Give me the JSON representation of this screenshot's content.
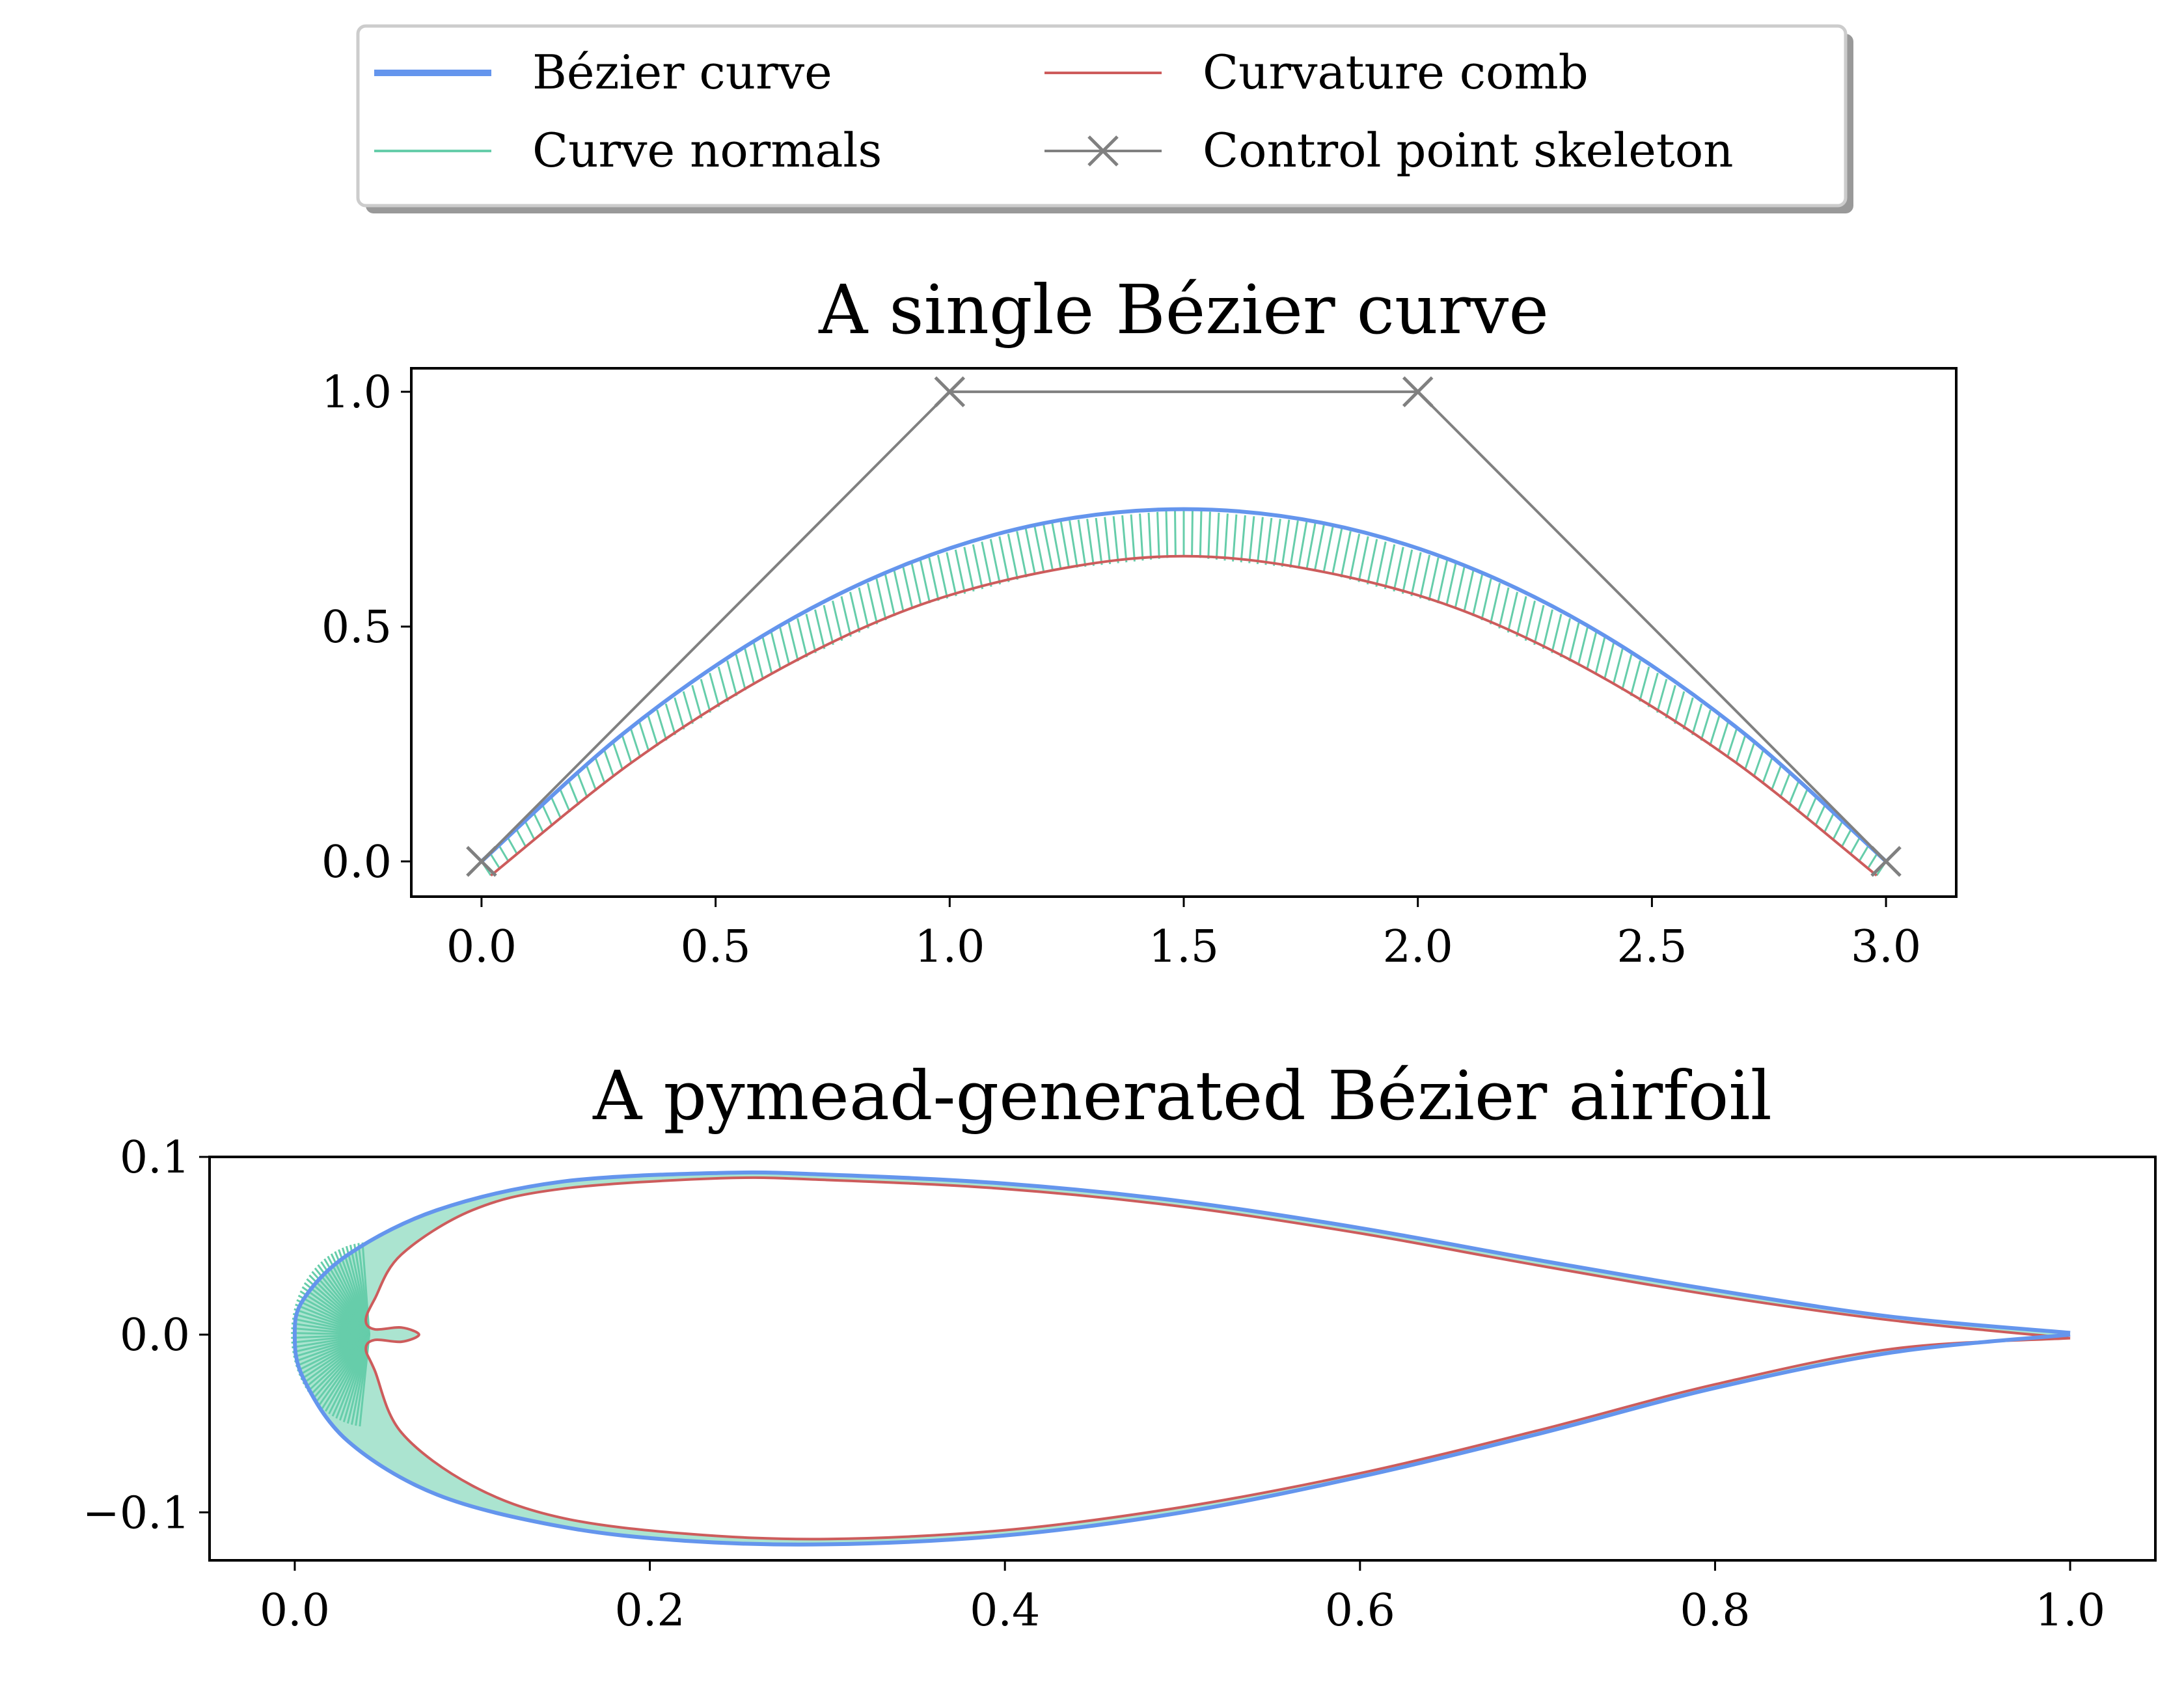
{
  "legend": {
    "placement": "top-center",
    "entries": [
      {
        "label": "Bézier curve",
        "color": "#6495ED",
        "marker": "line-thick"
      },
      {
        "label": "Curvature comb",
        "color": "#CD5C5C",
        "marker": "line"
      },
      {
        "label": "Curve normals",
        "color": "#66CDAA",
        "marker": "line"
      },
      {
        "label": "Control point skeleton",
        "color": "#808080",
        "marker": "line-x"
      }
    ]
  },
  "chart_data": [
    {
      "type": "line",
      "title": "A single Bézier curve",
      "xlabel": "",
      "ylabel": "",
      "xlim": [
        -0.15,
        3.15
      ],
      "ylim": [
        -0.075,
        1.05
      ],
      "xticks": [
        0.0,
        0.5,
        1.0,
        1.5,
        2.0,
        2.5,
        3.0
      ],
      "xtick_labels": [
        "0.0",
        "0.5",
        "1.0",
        "1.5",
        "2.0",
        "2.5",
        "3.0"
      ],
      "yticks": [
        0.0,
        0.5,
        1.0
      ],
      "ytick_labels": [
        "0.0",
        "0.5",
        "1.0"
      ],
      "grid": false,
      "control_points": [
        [
          0,
          0
        ],
        [
          1,
          1
        ],
        [
          2,
          1
        ],
        [
          3,
          0
        ]
      ],
      "series": [
        {
          "name": "Bézier curve",
          "x": [
            0.0,
            0.3,
            0.6,
            0.9,
            1.2,
            1.5,
            1.8,
            2.1,
            2.4,
            2.7,
            3.0
          ],
          "y": [
            0.0,
            0.27,
            0.48,
            0.63,
            0.72,
            0.75,
            0.72,
            0.63,
            0.48,
            0.27,
            0.0
          ]
        },
        {
          "name": "Curvature comb",
          "x": [
            0.02,
            0.32,
            0.62,
            0.92,
            1.22,
            1.5,
            1.78,
            2.08,
            2.38,
            2.68,
            2.98
          ],
          "y": [
            -0.03,
            0.21,
            0.4,
            0.54,
            0.62,
            0.65,
            0.62,
            0.54,
            0.4,
            0.21,
            -0.03
          ]
        }
      ]
    },
    {
      "type": "line",
      "title": "A pymead-generated Bézier airfoil",
      "xlabel": "",
      "ylabel": "",
      "xlim": [
        -0.048,
        1.048
      ],
      "ylim": [
        -0.127,
        0.1
      ],
      "xticks": [
        0.0,
        0.2,
        0.4,
        0.6,
        0.8,
        1.0
      ],
      "xtick_labels": [
        "0.0",
        "0.2",
        "0.4",
        "0.6",
        "0.8",
        "1.0"
      ],
      "yticks": [
        0.1,
        0.0,
        -0.1
      ],
      "ytick_labels": [
        "0.1",
        "0.0",
        "−0.1"
      ],
      "grid": false,
      "series": [
        {
          "name": "Bézier curve",
          "x": [
            1.0,
            0.9,
            0.8,
            0.7,
            0.6,
            0.5,
            0.4,
            0.3,
            0.24,
            0.15,
            0.08,
            0.03,
            0.005,
            0.0,
            0.005,
            0.03,
            0.08,
            0.15,
            0.22,
            0.3,
            0.4,
            0.5,
            0.6,
            0.7,
            0.8,
            0.9,
            1.0
          ],
          "y": [
            0.001,
            0.01,
            0.025,
            0.042,
            0.06,
            0.075,
            0.085,
            0.09,
            0.091,
            0.086,
            0.07,
            0.045,
            0.02,
            0.0,
            -0.025,
            -0.06,
            -0.09,
            -0.108,
            -0.116,
            -0.118,
            -0.113,
            -0.1,
            -0.08,
            -0.056,
            -0.03,
            -0.01,
            0.0
          ]
        },
        {
          "name": "Curvature comb",
          "x": [
            1.0,
            0.9,
            0.8,
            0.7,
            0.6,
            0.5,
            0.4,
            0.3,
            0.24,
            0.15,
            0.1,
            0.06,
            0.045,
            0.04,
            0.045,
            0.06,
            0.07,
            0.06,
            0.045,
            0.04,
            0.045,
            0.06,
            0.1,
            0.15,
            0.22,
            0.3,
            0.4,
            0.5,
            0.6,
            0.7,
            0.8,
            0.9,
            1.0
          ],
          "y": [
            -0.002,
            0.008,
            0.022,
            0.039,
            0.057,
            0.072,
            0.082,
            0.087,
            0.088,
            0.082,
            0.07,
            0.045,
            0.02,
            0.008,
            0.003,
            0.004,
            0.0,
            -0.004,
            -0.003,
            -0.008,
            -0.02,
            -0.055,
            -0.085,
            -0.103,
            -0.112,
            -0.115,
            -0.11,
            -0.097,
            -0.078,
            -0.054,
            -0.028,
            -0.008,
            -0.002
          ]
        }
      ]
    }
  ]
}
